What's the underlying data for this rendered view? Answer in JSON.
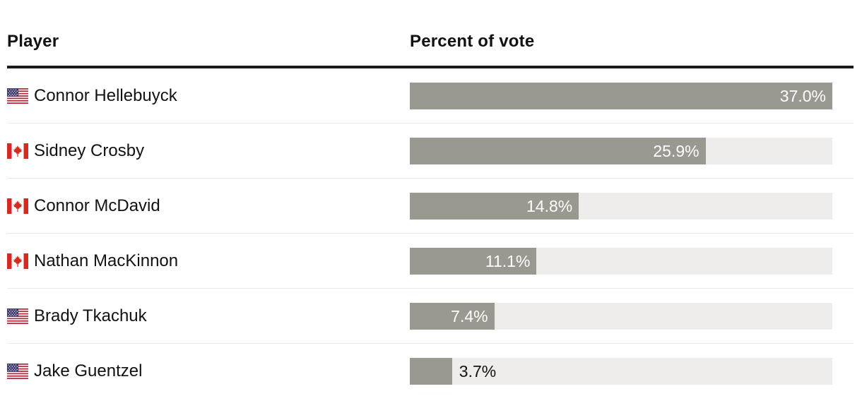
{
  "header": {
    "player_col": "Player",
    "value_col": "Percent of vote"
  },
  "rows": [
    {
      "player": "Connor Hellebuyck",
      "country": "us",
      "value": 37.0,
      "value_label": "37.0%"
    },
    {
      "player": "Sidney Crosby",
      "country": "ca",
      "value": 25.9,
      "value_label": "25.9%"
    },
    {
      "player": "Connor McDavid",
      "country": "ca",
      "value": 14.8,
      "value_label": "14.8%"
    },
    {
      "player": "Nathan MacKinnon",
      "country": "ca",
      "value": 11.1,
      "value_label": "11.1%"
    },
    {
      "player": "Brady Tkachuk",
      "country": "us",
      "value": 7.4,
      "value_label": "7.4%"
    },
    {
      "player": "Jake Guentzel",
      "country": "us",
      "value": 3.7,
      "value_label": "3.7%"
    }
  ],
  "colors": {
    "bar_fill": "#999891",
    "bar_track": "#eeedeb",
    "header_rule": "#1b1b1b",
    "text": "#121212",
    "separator": "#e9e9e7",
    "label_inside": "#ffffff",
    "label_outside": "#121212",
    "us_flag_red": "#b22234",
    "us_flag_blue": "#3c3b6e",
    "canada_flag_red": "#d52b1e"
  },
  "chart_data": {
    "type": "bar",
    "orientation": "horizontal",
    "categories": [
      "Connor Hellebuyck",
      "Sidney Crosby",
      "Connor McDavid",
      "Nathan MacKinnon",
      "Brady Tkachuk",
      "Jake Guentzel"
    ],
    "values": [
      37.0,
      25.9,
      14.8,
      11.1,
      7.4,
      3.7
    ],
    "value_labels": [
      "37.0%",
      "25.9%",
      "14.8%",
      "11.1%",
      "7.4%",
      "3.7%"
    ],
    "countries": [
      "USA",
      "Canada",
      "Canada",
      "Canada",
      "USA",
      "USA"
    ],
    "title": "",
    "xlabel": "Percent of vote",
    "ylabel": "Player",
    "xlim": [
      0,
      37.0
    ],
    "grid": false,
    "legend": false
  }
}
